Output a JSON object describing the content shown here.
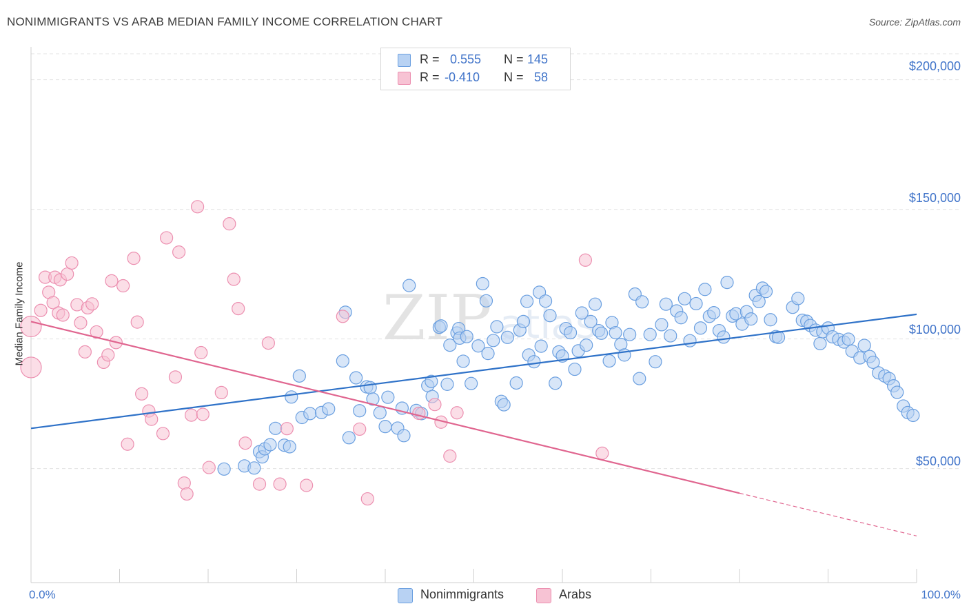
{
  "header": {
    "title": "NONIMMIGRANTS VS ARAB MEDIAN FAMILY INCOME CORRELATION CHART",
    "source": "Source: ZipAtlas.com"
  },
  "stats": [
    {
      "r_label": "R =",
      "r_value": "0.555",
      "n_label": "N =",
      "n_value": "145",
      "color": "#7aaee8"
    },
    {
      "r_label": "R =",
      "r_value": "-0.410",
      "n_label": "N =",
      "n_value": "58",
      "color": "#f09ab8"
    }
  ],
  "legend": [
    {
      "label": "Nonimmigrants",
      "color": "#7aaee8"
    },
    {
      "label": "Arabs",
      "color": "#f09ab8"
    }
  ],
  "colors": {
    "blue_fill": "#b8d2f3",
    "blue_stroke": "#6a9fe0",
    "blue_line": "#2f72c8",
    "pink_fill": "#f7c3d4",
    "pink_stroke": "#ec8fb0",
    "pink_line": "#e0658f",
    "axis_text": "#3f73c9",
    "grid": "#e3e3e3"
  },
  "chart_data": {
    "type": "scatter",
    "title": "NONIMMIGRANTS VS ARAB MEDIAN FAMILY INCOME CORRELATION CHART",
    "xlabel": "",
    "ylabel": "Median Family Income",
    "x_tick_labels": [
      "0.0%",
      "100.0%"
    ],
    "y_tick_labels": [
      "$50,000",
      "$100,000",
      "$150,000",
      "$200,000"
    ],
    "y_ticks": [
      50000,
      100000,
      150000,
      200000
    ],
    "xlim": [
      0,
      100
    ],
    "ylim": [
      6000,
      210000
    ],
    "grid": true,
    "legend_position": "bottom",
    "watermark": "ZIPatlas",
    "series": [
      {
        "name": "Nonimmigrants",
        "r": 0.555,
        "n": 145,
        "trend": {
          "x": [
            0,
            100
          ],
          "y": [
            65500,
            109500
          ]
        },
        "points": [
          [
            21.8,
            49.8
          ],
          [
            24.1,
            51
          ],
          [
            25.2,
            50.2
          ],
          [
            25.8,
            56.5
          ],
          [
            26.1,
            54.5
          ],
          [
            26.4,
            57.6
          ],
          [
            27,
            59.2
          ],
          [
            27.6,
            65.5
          ],
          [
            28.6,
            59
          ],
          [
            29.2,
            58.4
          ],
          [
            29.4,
            77.6
          ],
          [
            30.3,
            85.7
          ],
          [
            30.6,
            69.7
          ],
          [
            31.5,
            71.2
          ],
          [
            32.8,
            71.6
          ],
          [
            33.6,
            73
          ],
          [
            35.2,
            91.5
          ],
          [
            35.5,
            110.3
          ],
          [
            35.9,
            61.9
          ],
          [
            36.7,
            85
          ],
          [
            37.1,
            72.3
          ],
          [
            37.9,
            81.5
          ],
          [
            38.3,
            81.2
          ],
          [
            38.6,
            76.8
          ],
          [
            39.4,
            71.5
          ],
          [
            40,
            66.2
          ],
          [
            40.3,
            77.5
          ],
          [
            41.4,
            65.6
          ],
          [
            41.9,
            73.3
          ],
          [
            42.1,
            62.7
          ],
          [
            42.7,
            120.6
          ],
          [
            43.5,
            72.4
          ],
          [
            44.1,
            71.2
          ],
          [
            44.8,
            82
          ],
          [
            45.2,
            83.6
          ],
          [
            45.3,
            77.8
          ],
          [
            46.1,
            104.5
          ],
          [
            46.3,
            105
          ],
          [
            47,
            82.5
          ],
          [
            47.3,
            97.6
          ],
          [
            48.1,
            102.3
          ],
          [
            48.3,
            104
          ],
          [
            48.4,
            100.3
          ],
          [
            48.8,
            91.4
          ],
          [
            49.2,
            100.9
          ],
          [
            49.7,
            82.8
          ],
          [
            50.5,
            97.3
          ],
          [
            51,
            121.3
          ],
          [
            51.4,
            114.7
          ],
          [
            51.6,
            94.4
          ],
          [
            52.2,
            99.4
          ],
          [
            52.6,
            104.7
          ],
          [
            53.1,
            75.9
          ],
          [
            53.4,
            74.6
          ],
          [
            53.8,
            100.6
          ],
          [
            54.8,
            83
          ],
          [
            55.2,
            103.4
          ],
          [
            55.6,
            106.7
          ],
          [
            56,
            114.5
          ],
          [
            56.2,
            93.8
          ],
          [
            56.8,
            91.2
          ],
          [
            57.4,
            118
          ],
          [
            57.6,
            97.2
          ],
          [
            58.1,
            114.6
          ],
          [
            58.6,
            109
          ],
          [
            59.2,
            82.9
          ],
          [
            59.6,
            95
          ],
          [
            60,
            93.4
          ],
          [
            60.4,
            104
          ],
          [
            60.9,
            102.4
          ],
          [
            61.4,
            88.3
          ],
          [
            61.8,
            95.4
          ],
          [
            62.2,
            110
          ],
          [
            62.7,
            97.6
          ],
          [
            63.2,
            106.7
          ],
          [
            63.7,
            113.4
          ],
          [
            64.1,
            103.2
          ],
          [
            64.4,
            102.2
          ],
          [
            65.3,
            91.5
          ],
          [
            65.6,
            106.3
          ],
          [
            66,
            102.4
          ],
          [
            66.6,
            97.9
          ],
          [
            67,
            93.8
          ],
          [
            67.6,
            101.7
          ],
          [
            68.2,
            117.3
          ],
          [
            68.7,
            84.7
          ],
          [
            69,
            114.3
          ],
          [
            69.9,
            101.7
          ],
          [
            70.5,
            91.2
          ],
          [
            71.2,
            105.5
          ],
          [
            71.7,
            113.4
          ],
          [
            72.2,
            101.2
          ],
          [
            72.9,
            110.8
          ],
          [
            73.4,
            108.2
          ],
          [
            73.8,
            115.5
          ],
          [
            74.4,
            99.3
          ],
          [
            75.1,
            113.6
          ],
          [
            75.6,
            104.2
          ],
          [
            76.1,
            119.1
          ],
          [
            76.6,
            108.7
          ],
          [
            77.1,
            110.1
          ],
          [
            77.7,
            103.2
          ],
          [
            78.2,
            100.7
          ],
          [
            78.6,
            121.8
          ],
          [
            79.2,
            108.8
          ],
          [
            79.6,
            109.7
          ],
          [
            80.3,
            105.7
          ],
          [
            80.8,
            110.5
          ],
          [
            81.3,
            107.7
          ],
          [
            81.8,
            116.8
          ],
          [
            82.2,
            114.4
          ],
          [
            82.6,
            119.6
          ],
          [
            83,
            118.3
          ],
          [
            83.5,
            107.4
          ],
          [
            84.1,
            100.9
          ],
          [
            84.4,
            100.6
          ],
          [
            86,
            112.2
          ],
          [
            86.6,
            115.6
          ],
          [
            87.1,
            107.2
          ],
          [
            87.6,
            106.8
          ],
          [
            88,
            105.2
          ],
          [
            88.6,
            103.4
          ],
          [
            89.1,
            98.2
          ],
          [
            89.4,
            102.8
          ],
          [
            90,
            104.2
          ],
          [
            90.5,
            100.8
          ],
          [
            91.2,
            99.8
          ],
          [
            91.8,
            98.8
          ],
          [
            92.3,
            99.9
          ],
          [
            92.7,
            95.3
          ],
          [
            93.6,
            92.7
          ],
          [
            94.1,
            97.5
          ],
          [
            94.7,
            93.2
          ],
          [
            95.1,
            91
          ],
          [
            95.7,
            86.9
          ],
          [
            96.4,
            85.7
          ],
          [
            96.9,
            84.7
          ],
          [
            97.4,
            81.9
          ],
          [
            97.8,
            79.4
          ],
          [
            98.5,
            74.1
          ],
          [
            99,
            71.6
          ],
          [
            99.6,
            70.5
          ]
        ]
      },
      {
        "name": "Arabs",
        "r": -0.41,
        "n": 58,
        "trend": {
          "x": [
            0,
            80
          ],
          "y": [
            106700,
            40500
          ]
        },
        "trend_dashed": {
          "x": [
            80,
            100
          ],
          "y": [
            40500,
            24000
          ]
        },
        "points": [
          [
            0,
            104.8
          ],
          [
            0,
            89
          ],
          [
            1.1,
            111
          ],
          [
            1.6,
            123.8
          ],
          [
            2,
            118
          ],
          [
            2.5,
            114
          ],
          [
            2.7,
            123.8
          ],
          [
            3.1,
            110
          ],
          [
            3.3,
            122.8
          ],
          [
            3.6,
            109.2
          ],
          [
            4.1,
            125
          ],
          [
            4.6,
            129.3
          ],
          [
            5.2,
            113.2
          ],
          [
            5.6,
            106.2
          ],
          [
            6.1,
            95
          ],
          [
            6.4,
            112
          ],
          [
            6.9,
            113.5
          ],
          [
            7.4,
            102.7
          ],
          [
            8.2,
            91
          ],
          [
            8.7,
            93.8
          ],
          [
            9.1,
            122.4
          ],
          [
            9.6,
            98.6
          ],
          [
            10.4,
            120.5
          ],
          [
            10.9,
            59.4
          ],
          [
            11.6,
            131.1
          ],
          [
            12,
            106.5
          ],
          [
            12.5,
            78.8
          ],
          [
            13.3,
            72.2
          ],
          [
            13.6,
            69
          ],
          [
            14.9,
            63.5
          ],
          [
            15.3,
            139
          ],
          [
            16.3,
            85.3
          ],
          [
            16.7,
            133.5
          ],
          [
            17.3,
            44.4
          ],
          [
            17.6,
            40.2
          ],
          [
            18.1,
            70.6
          ],
          [
            18.8,
            151
          ],
          [
            19.2,
            94.7
          ],
          [
            19.4,
            70.9
          ],
          [
            20.1,
            50.4
          ],
          [
            21.5,
            79.3
          ],
          [
            22.4,
            144.4
          ],
          [
            22.9,
            123
          ],
          [
            23.4,
            111.7
          ],
          [
            24.2,
            59.8
          ],
          [
            25.8,
            44
          ],
          [
            26.8,
            98.4
          ],
          [
            28.1,
            44
          ],
          [
            28.9,
            65.4
          ],
          [
            31.1,
            43.5
          ],
          [
            35.2,
            108.7
          ],
          [
            37.1,
            65.2
          ],
          [
            38,
            38.3
          ],
          [
            43.8,
            71.3
          ],
          [
            45.6,
            74.7
          ],
          [
            46.3,
            67.9
          ],
          [
            47.3,
            54.8
          ],
          [
            48.1,
            71.5
          ],
          [
            62.6,
            130.4
          ],
          [
            64.5,
            55.9
          ]
        ]
      }
    ]
  }
}
